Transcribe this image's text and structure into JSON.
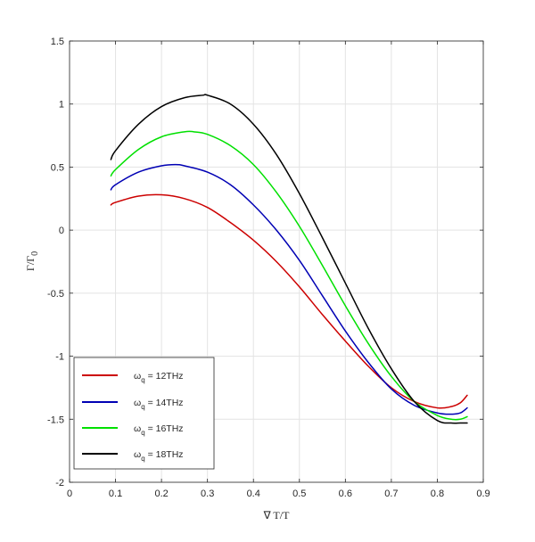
{
  "chart_data": {
    "type": "line",
    "title": "",
    "xlabel": "∇ T/T",
    "ylabel": "Γ/Γ",
    "ylabel_subscript": "0",
    "xlim": [
      0,
      0.9
    ],
    "ylim": [
      -2,
      1.5
    ],
    "xticks": [
      0,
      0.1,
      0.2,
      0.3,
      0.4,
      0.5,
      0.6,
      0.7,
      0.8,
      0.9
    ],
    "yticks": [
      -2,
      -1.5,
      -1,
      -0.5,
      0,
      0.5,
      1,
      1.5
    ],
    "xtick_labels": [
      "0",
      "0.1",
      "0.2",
      "0.3",
      "0.4",
      "0.5",
      "0.6",
      "0.7",
      "0.8",
      "0.9"
    ],
    "ytick_labels": [
      "-2",
      "-1.5",
      "-1",
      "-0.5",
      "0",
      "0.5",
      "1",
      "1.5"
    ],
    "grid": true,
    "legend_position": "bottom-left",
    "series": [
      {
        "name": "ω_q = 12THz",
        "legend_symbol": "ω",
        "legend_sub": "q",
        "legend_rest": " = 12THz",
        "color": "#cc0000",
        "x": [
          0.09,
          0.1,
          0.15,
          0.2,
          0.25,
          0.3,
          0.35,
          0.4,
          0.45,
          0.5,
          0.55,
          0.6,
          0.65,
          0.7,
          0.75,
          0.8,
          0.83,
          0.85,
          0.865
        ],
        "y": [
          0.2,
          0.22,
          0.27,
          0.28,
          0.25,
          0.18,
          0.06,
          -0.08,
          -0.25,
          -0.45,
          -0.67,
          -0.88,
          -1.08,
          -1.25,
          -1.36,
          -1.41,
          -1.4,
          -1.37,
          -1.31
        ]
      },
      {
        "name": "ω_q = 14THz",
        "legend_symbol": "ω",
        "legend_sub": "q",
        "legend_rest": " = 14THz",
        "color": "#0000b4",
        "x": [
          0.09,
          0.1,
          0.15,
          0.2,
          0.23,
          0.25,
          0.3,
          0.35,
          0.4,
          0.45,
          0.5,
          0.55,
          0.6,
          0.65,
          0.7,
          0.75,
          0.8,
          0.83,
          0.85,
          0.865
        ],
        "y": [
          0.32,
          0.36,
          0.46,
          0.51,
          0.52,
          0.51,
          0.46,
          0.36,
          0.2,
          0.0,
          -0.24,
          -0.52,
          -0.8,
          -1.05,
          -1.26,
          -1.39,
          -1.45,
          -1.46,
          -1.45,
          -1.41
        ]
      },
      {
        "name": "ω_q = 16THz",
        "legend_symbol": "ω",
        "legend_sub": "q",
        "legend_rest": " = 16THz",
        "color": "#00e000",
        "x": [
          0.09,
          0.1,
          0.15,
          0.2,
          0.25,
          0.27,
          0.3,
          0.35,
          0.4,
          0.45,
          0.5,
          0.55,
          0.6,
          0.65,
          0.7,
          0.75,
          0.8,
          0.83,
          0.85,
          0.865
        ],
        "y": [
          0.43,
          0.48,
          0.64,
          0.74,
          0.78,
          0.78,
          0.76,
          0.67,
          0.52,
          0.3,
          0.03,
          -0.28,
          -0.6,
          -0.9,
          -1.16,
          -1.36,
          -1.47,
          -1.5,
          -1.5,
          -1.48
        ]
      },
      {
        "name": "ω_q = 18THz",
        "legend_symbol": "ω",
        "legend_sub": "q",
        "legend_rest": " = 18THz",
        "color": "#000000",
        "x": [
          0.09,
          0.1,
          0.15,
          0.2,
          0.25,
          0.29,
          0.3,
          0.35,
          0.4,
          0.45,
          0.5,
          0.55,
          0.6,
          0.65,
          0.7,
          0.75,
          0.8,
          0.83,
          0.85,
          0.865
        ],
        "y": [
          0.56,
          0.63,
          0.84,
          0.98,
          1.05,
          1.07,
          1.07,
          1.0,
          0.84,
          0.6,
          0.29,
          -0.06,
          -0.42,
          -0.78,
          -1.1,
          -1.36,
          -1.51,
          -1.53,
          -1.53,
          -1.53
        ]
      }
    ]
  }
}
